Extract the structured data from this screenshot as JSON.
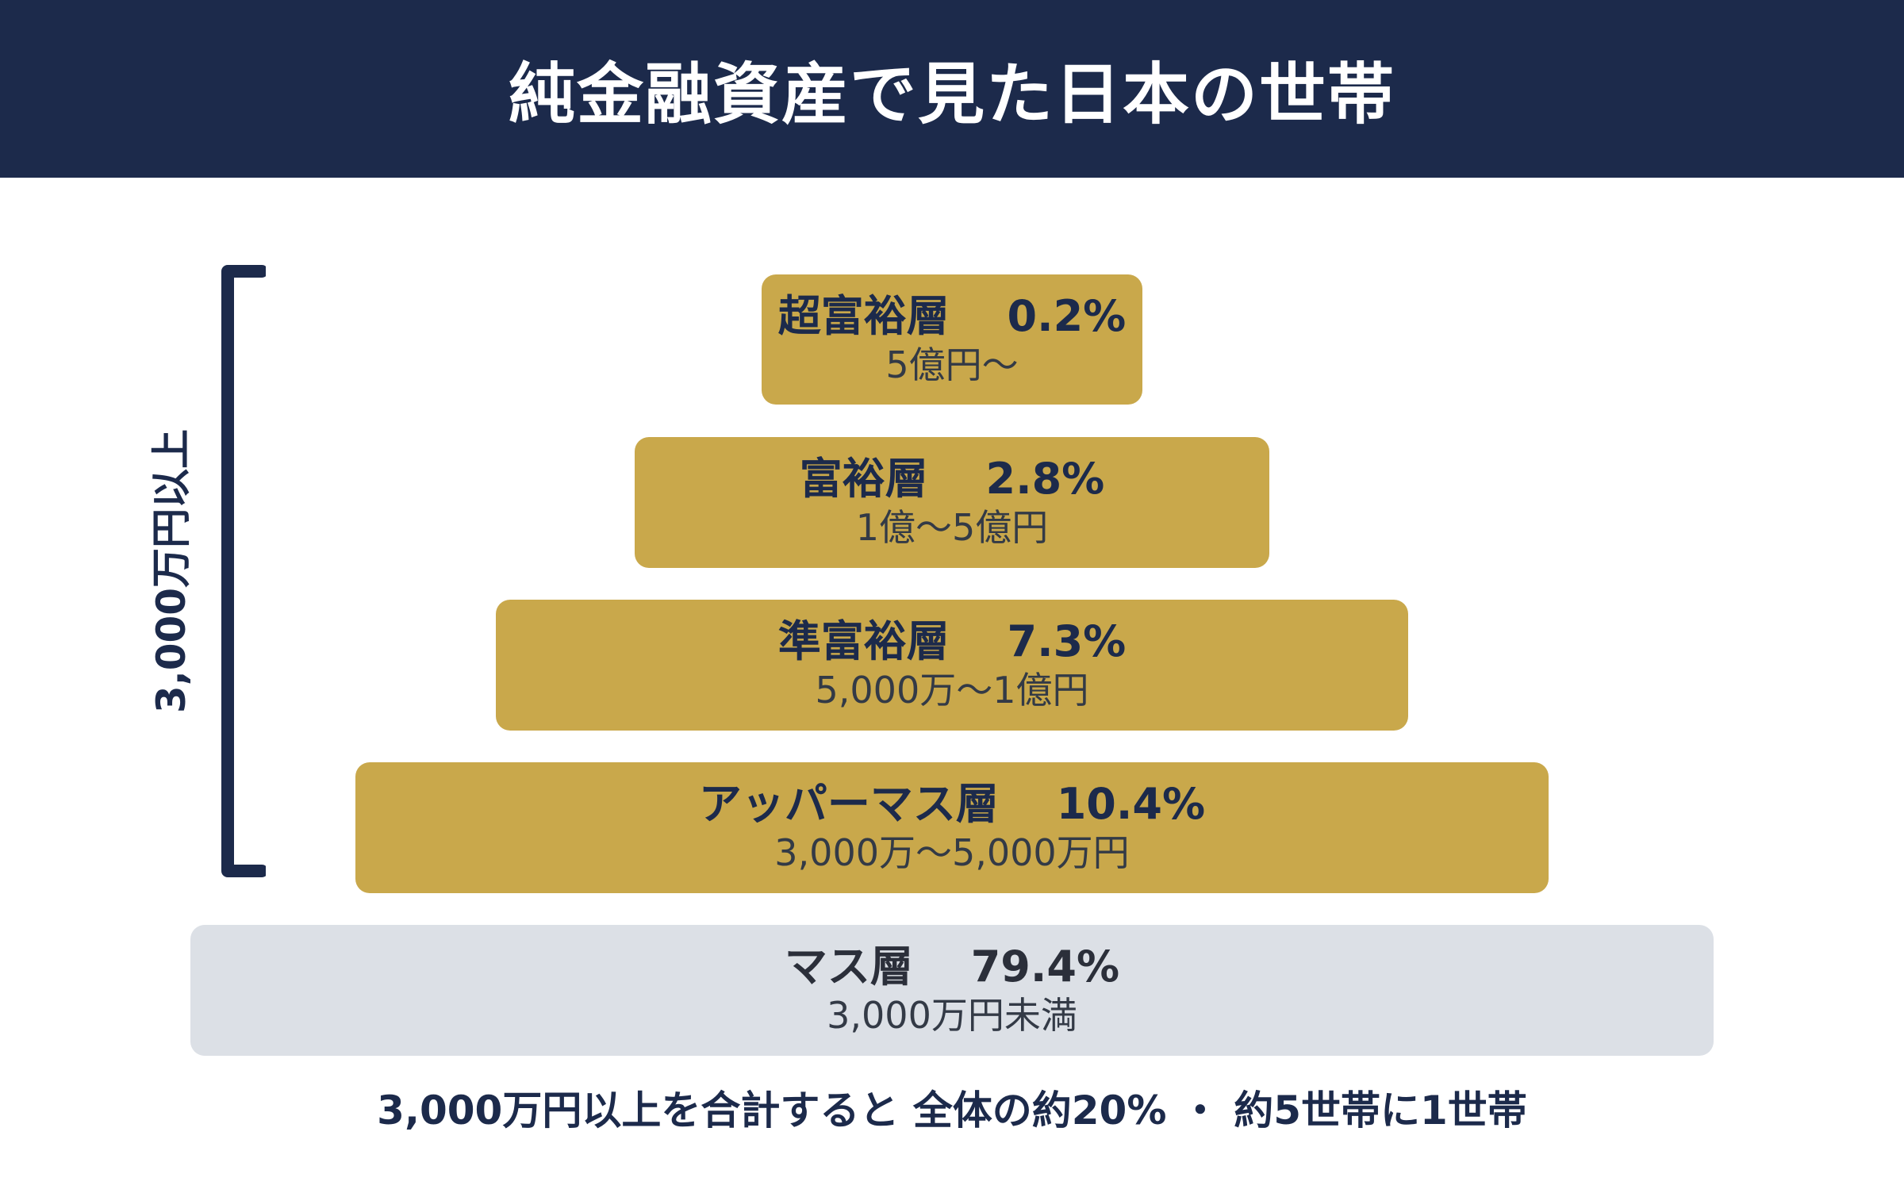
{
  "header": {
    "title": "純金融資産で見た日本の世帯"
  },
  "bracket": {
    "label": "3,000万円以上"
  },
  "tiers": [
    {
      "name": "超富裕層",
      "percent": "0.2%",
      "range": "5億円〜"
    },
    {
      "name": "富裕層",
      "percent": "2.8%",
      "range": "1億〜5億円"
    },
    {
      "name": "準富裕層",
      "percent": "7.3%",
      "range": "5,000万〜1億円"
    },
    {
      "name": "アッパーマス層",
      "percent": "10.4%",
      "range": "3,000万〜5,000万円"
    },
    {
      "name": "マス層",
      "percent": "79.4%",
      "range": "3,000万円未満"
    }
  ],
  "footer": {
    "note": "3,000万円以上を合計すると 全体の約20% ・ 約5世帯に1世帯"
  },
  "colors": {
    "navy": "#1c2a4b",
    "gold": "#c9a84b",
    "gray": "#dce0e6"
  }
}
